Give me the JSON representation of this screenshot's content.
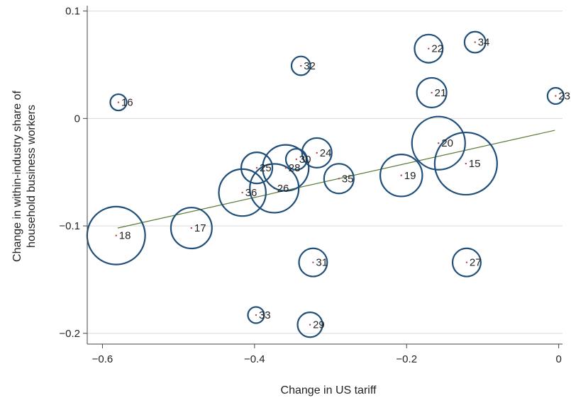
{
  "chart_data": {
    "type": "scatter",
    "xlabel": "Change in US tariff",
    "ylabel_lines": [
      "Change in within-industry share of",
      "household business workers"
    ],
    "xlim": [
      -0.62,
      0.005
    ],
    "ylim": [
      -0.21,
      0.105
    ],
    "x_ticks": [
      -0.6,
      -0.4,
      -0.2,
      0
    ],
    "x_tick_labels": [
      "−0.6",
      "−0.4",
      "−0.2",
      "0"
    ],
    "y_ticks": [
      -0.2,
      -0.1,
      0,
      0.1
    ],
    "y_tick_labels": [
      "−0.2",
      "−0.1",
      "0",
      "0.1"
    ],
    "grid": "horizontal",
    "points": [
      {
        "label": "15",
        "x": -0.122,
        "y": -0.042,
        "weight": 44
      },
      {
        "label": "16",
        "x": -0.579,
        "y": 0.015,
        "weight": 3
      },
      {
        "label": "17",
        "x": -0.483,
        "y": -0.102,
        "weight": 19
      },
      {
        "label": "18",
        "x": -0.582,
        "y": -0.109,
        "weight": 38
      },
      {
        "label": "19",
        "x": -0.207,
        "y": -0.053,
        "weight": 20
      },
      {
        "label": "20",
        "x": -0.158,
        "y": -0.023,
        "weight": 32
      },
      {
        "label": "21",
        "x": -0.167,
        "y": 0.024,
        "weight": 10
      },
      {
        "label": "22",
        "x": -0.171,
        "y": 0.065,
        "weight": 9
      },
      {
        "label": "23",
        "x": -0.004,
        "y": 0.021,
        "weight": 3
      },
      {
        "label": "24",
        "x": -0.318,
        "y": -0.032,
        "weight": 10
      },
      {
        "label": "25",
        "x": -0.397,
        "y": -0.046,
        "weight": 11
      },
      {
        "label": "26",
        "x": -0.374,
        "y": -0.065,
        "weight": 27
      },
      {
        "label": "27",
        "x": -0.121,
        "y": -0.134,
        "weight": 9
      },
      {
        "label": "28",
        "x": -0.359,
        "y": -0.046,
        "weight": 24
      },
      {
        "label": "29",
        "x": -0.327,
        "y": -0.192,
        "weight": 7
      },
      {
        "label": "30",
        "x": -0.345,
        "y": -0.038,
        "weight": 5
      },
      {
        "label": "31",
        "x": -0.323,
        "y": -0.134,
        "weight": 9
      },
      {
        "label": "32",
        "x": -0.339,
        "y": 0.049,
        "weight": 4
      },
      {
        "label": "33",
        "x": -0.398,
        "y": -0.183,
        "weight": 3
      },
      {
        "label": "34",
        "x": -0.11,
        "y": 0.071,
        "weight": 5
      },
      {
        "label": "35",
        "x": -0.289,
        "y": -0.056,
        "weight": 10
      },
      {
        "label": "36",
        "x": -0.416,
        "y": -0.069,
        "weight": 25
      }
    ],
    "fit_line": {
      "x": [
        -0.58,
        -0.005
      ],
      "y": [
        -0.102,
        -0.011
      ],
      "color": "#5a7a35"
    },
    "colors": {
      "circle": "#1f4e79",
      "dot": "#c04040",
      "grid": "#d9d9d9",
      "axis": "#444444"
    }
  }
}
